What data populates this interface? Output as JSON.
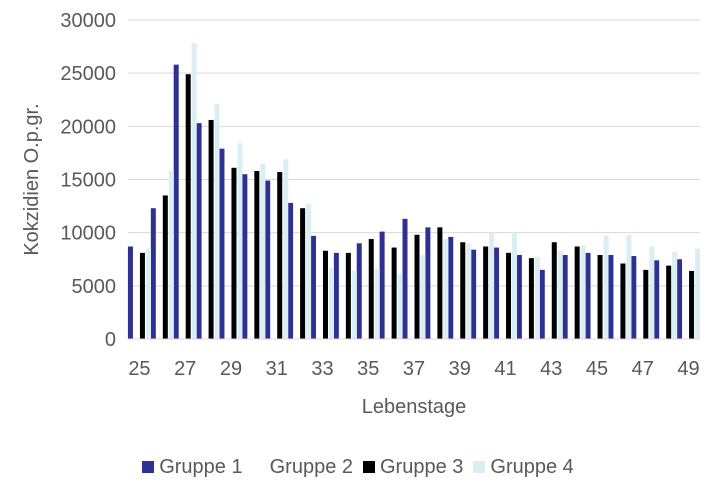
{
  "chart_data": {
    "type": "bar",
    "xlabel": "Lebenstage",
    "ylabel": "Kokzidien O.p.gr.",
    "ylim": [
      0,
      30000
    ],
    "yticks": [
      0,
      5000,
      10000,
      15000,
      20000,
      25000,
      30000
    ],
    "ytick_labels": [
      "0",
      "5000",
      "10000",
      "15000",
      "20000",
      "25000",
      "30000"
    ],
    "categories": [
      25,
      26,
      27,
      28,
      29,
      30,
      31,
      32,
      33,
      34,
      35,
      36,
      37,
      38,
      39,
      40,
      41,
      42,
      43,
      44,
      45,
      46,
      47,
      48,
      49
    ],
    "xtick_labels": [
      "25",
      "",
      "27",
      "",
      "29",
      "",
      "31",
      "",
      "33",
      "",
      "35",
      "",
      "37",
      "",
      "39",
      "",
      "41",
      "",
      "43",
      "",
      "45",
      "",
      "47",
      "",
      "49"
    ],
    "grid": "horizontal",
    "legend_position": "bottom",
    "series": [
      {
        "name": "Gruppe 1",
        "color": "#2e3192",
        "values": [
          8700,
          12300,
          25800,
          20300,
          17900,
          15500,
          14900,
          12800,
          9700,
          8100,
          9000,
          10100,
          11300,
          10500,
          9600,
          8400,
          8600,
          7900,
          6500,
          7900,
          8100,
          7900,
          7800,
          7400,
          7500
        ]
      },
      {
        "name": "Gruppe 2",
        "color": "#ffffff",
        "values": [
          0,
          0,
          0,
          0,
          0,
          0,
          0,
          0,
          0,
          0,
          0,
          0,
          0,
          0,
          0,
          0,
          0,
          0,
          0,
          0,
          0,
          0,
          0,
          0,
          0
        ]
      },
      {
        "name": "Gruppe 3",
        "color": "#000000",
        "values": [
          8100,
          13500,
          24900,
          20600,
          16100,
          15800,
          15700,
          12300,
          8300,
          8100,
          9400,
          8600,
          9800,
          10500,
          9100,
          8700,
          8100,
          7600,
          9100,
          8700,
          7900,
          7100,
          6500,
          6900,
          6400
        ]
      },
      {
        "name": "Gruppe 4",
        "color": "#daeef3",
        "values": [
          8500,
          15800,
          27800,
          22100,
          18400,
          16500,
          16900,
          12700,
          6700,
          6400,
          6600,
          6100,
          7900,
          9400,
          9000,
          10000,
          10000,
          7700,
          8300,
          8800,
          9700,
          9800,
          8700,
          8200,
          8500
        ]
      }
    ]
  }
}
